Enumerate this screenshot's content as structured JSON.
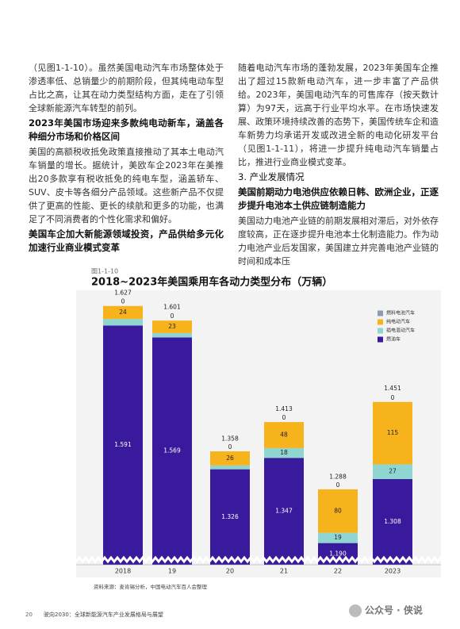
{
  "document": {
    "left_paragraph_1": "（见图1-1-10）。虽然美国电动汽车市场整体处于渗透率低、总销量少的前期阶段，但其纯电动车型占比之高，让其在动力类型结构方面，走在了引领全球新能源汽车转型的前列。",
    "left_heading_1": "2023年美国市场迎来多款纯电动新车，涵盖各种细分市场和价格区间",
    "left_paragraph_2": "美国的高额税收抵免政策直接推动了其本土电动汽车销量的增长。据统计，美欧车企2023年在美推出20多款享有税收抵免的纯电车型，涵盖轿车、SUV、皮卡等各细分产品领域。这些新产品不仅提供了更高的性能、更长的续航和更多的功能，也满足了不同消费者的个性化需求和偏好。",
    "left_heading_2": "美国车企加大新能源领域投资，产品供给多元化加速行业商业模式变革",
    "right_paragraph_1": "随着电动汽车市场的蓬勃发展，2023年美国车企推出了超过15款新电动汽车，进一步丰富了产品供给。2023年，美国电动汽车的可售库存（按天数计算）为97天，远高于行业平均水平。在市场快速发展、政策环境持续改善的态势下，美国传统车企和造车新势力均承诺开发或改进全新的电动化研发平台（见图1-1-11），将进一步提升纯电动汽车销量占比，推进行业商业模式变革。",
    "section_title": "3. 产业发展情况",
    "right_heading_1": "美国前期动力电池供应依赖日韩、欧洲企业，正逐步提升电池本土供应链制造能力",
    "right_paragraph_2": "美国动力电池产业链的前期发展相对滞后，对外依存度较高，正在逐步提升电池本土化制造能力。作为动力电池产业后发国家，美国建立并完善电池产业链的时间和成本压",
    "figure_label": "图1-1-10",
    "source": "资料来源：麦肯锡分析，中国电动汽车百人会整理",
    "page_number": "20",
    "footer_title": "驶向2030：全球新能源汽车产业发展格局与展望",
    "watermark": "公众号 · 侠说"
  },
  "chart_data": {
    "type": "stacked_bar",
    "title": "2018~2023年美国乘用车各动力类型分布（万辆）",
    "categories": [
      "2018",
      "19",
      "20",
      "21",
      "22",
      "2023"
    ],
    "series": [
      {
        "name": "燃油车",
        "color": "#3a1a9c",
        "values": [
          1591,
          1569,
          1326,
          1347,
          1190,
          1308
        ],
        "value_labels": [
          "1.591",
          "1.569",
          "1.326",
          "1.347",
          "1.190",
          "1.308"
        ]
      },
      {
        "name": "插电混动汽车",
        "color": "#8fd6d2",
        "values": [
          12,
          8,
          7,
          18,
          19,
          27
        ]
      },
      {
        "name": "纯电动汽车",
        "color": "#f7b31b",
        "values": [
          24,
          23,
          26,
          48,
          80,
          115
        ]
      },
      {
        "name": "燃料电池汽车",
        "color": "#8d9bb2",
        "values": [
          0,
          0,
          0,
          0,
          0,
          0
        ]
      }
    ],
    "totals": {
      "values": [
        1627,
        1601,
        1358,
        1413,
        1288,
        1451
      ],
      "value_labels": [
        "1.627",
        "1.601",
        "1.358",
        "1.413",
        "1.288",
        "1.451"
      ]
    },
    "ylim": [
      1150,
      1650
    ],
    "axis_break": true,
    "legend": "top-right"
  }
}
